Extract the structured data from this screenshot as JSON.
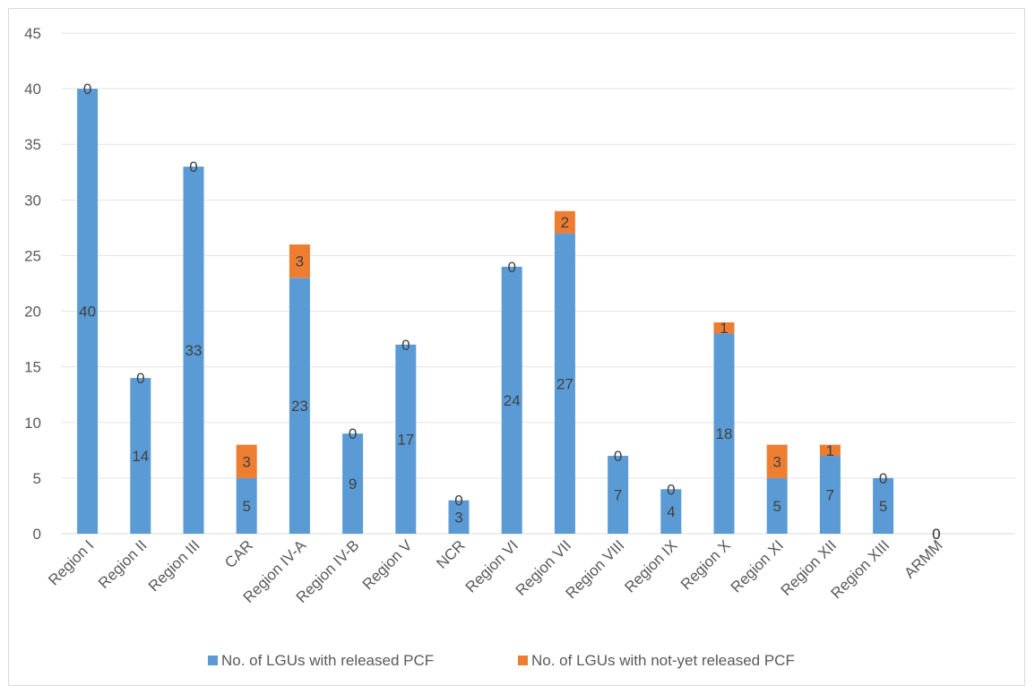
{
  "chart_data": {
    "type": "bar",
    "stacked": true,
    "categories": [
      "Region I",
      "Region II",
      "Region III",
      "CAR",
      "Region IV-A",
      "Region IV-B",
      "Region V",
      "NCR",
      "Region VI",
      "Region VII",
      "Region VIII",
      "Region IX",
      "Region X",
      "Region XI",
      "Region XII",
      "Region XIII",
      "ARMM"
    ],
    "series": [
      {
        "name": "No. of LGUs with released PCF",
        "values": [
          40,
          14,
          33,
          5,
          23,
          9,
          17,
          3,
          24,
          27,
          7,
          4,
          18,
          5,
          7,
          5,
          0
        ],
        "color": "#5b9bd5"
      },
      {
        "name": "No. of LGUs with not-yet released PCF",
        "values": [
          0,
          0,
          0,
          3,
          3,
          0,
          0,
          0,
          0,
          2,
          0,
          0,
          1,
          3,
          1,
          0,
          0
        ],
        "color": "#ed7d31"
      }
    ],
    "ylim": [
      0,
      45
    ],
    "yticks": [
      0,
      5,
      10,
      15,
      20,
      25,
      30,
      35,
      40,
      45
    ],
    "grid": true,
    "legend": "bottom",
    "title": "",
    "xlabel": "",
    "ylabel": ""
  }
}
